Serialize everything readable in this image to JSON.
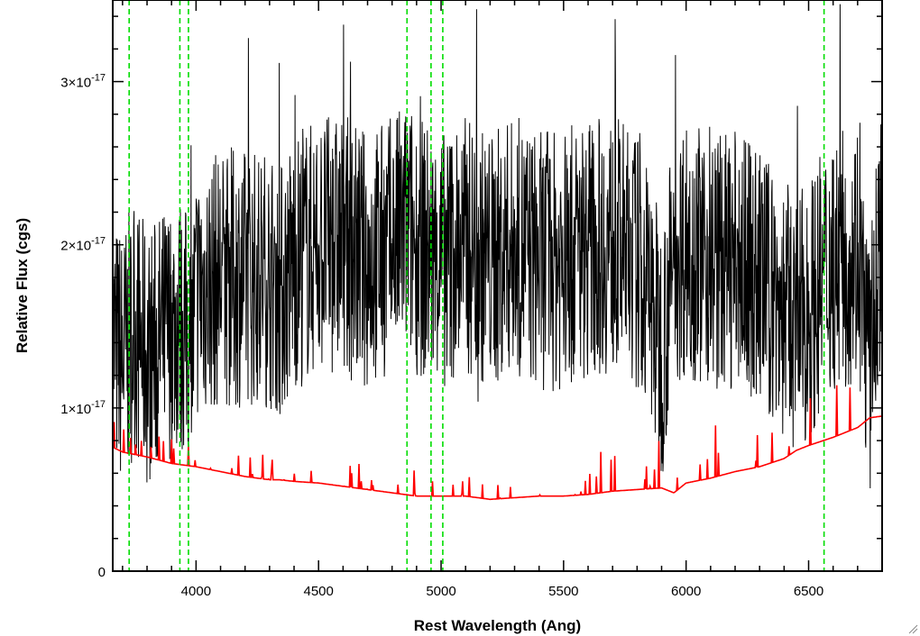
{
  "chart_data": {
    "type": "line",
    "xlabel": "Rest Wavelength (Ang)",
    "ylabel": "Relative Flux (cgs)",
    "xlim": [
      3660,
      6800
    ],
    "ylim": [
      0,
      3.5e-17
    ],
    "x_ticks": [
      {
        "value": 4000,
        "label": "4000"
      },
      {
        "value": 4500,
        "label": "4500"
      },
      {
        "value": 5000,
        "label": "5000"
      },
      {
        "value": 5500,
        "label": "5500"
      },
      {
        "value": 6000,
        "label": "6000"
      },
      {
        "value": 6500,
        "label": "6500"
      }
    ],
    "y_ticks": [
      {
        "value": 0,
        "label": "0"
      },
      {
        "value": 1e-17,
        "mantissa": "1",
        "exponent": "-17"
      },
      {
        "value": 2e-17,
        "mantissa": "2",
        "exponent": "-17"
      },
      {
        "value": 3e-17,
        "mantissa": "3",
        "exponent": "-17"
      }
    ],
    "reference_lines_x": [
      3727,
      3934,
      3969,
      4861,
      4959,
      5007,
      6563
    ],
    "series": [
      {
        "color": "#000000",
        "style": "noisy spectrum",
        "x": [
          3660,
          3700,
          3750,
          3800,
          3850,
          3900,
          3950,
          3980,
          4000,
          4100,
          4200,
          4300,
          4340,
          4400,
          4500,
          4600,
          4700,
          4800,
          4861,
          4900,
          5000,
          5100,
          5200,
          5300,
          5400,
          5500,
          5600,
          5700,
          5800,
          5850,
          5900,
          5950,
          6000,
          6100,
          6200,
          6300,
          6400,
          6450,
          6500,
          6563,
          6600,
          6650,
          6700,
          6750,
          6800
        ],
        "y": [
          1.4e-17,
          1.3e-17,
          1.5e-17,
          1.3e-17,
          1.4e-17,
          1.5e-17,
          1.5e-17,
          1.3e-17,
          1.7e-17,
          1.8e-17,
          1.8e-17,
          1.8e-17,
          1.7e-17,
          1.9e-17,
          2e-17,
          2e-17,
          1.9e-17,
          2e-17,
          2.1e-17,
          2e-17,
          1.9e-17,
          2e-17,
          1.9e-17,
          2e-17,
          1.9e-17,
          1.9e-17,
          2e-17,
          2e-17,
          1.9e-17,
          1.7e-17,
          1.35e-17,
          1.9e-17,
          2e-17,
          1.9e-17,
          1.9e-17,
          1.8e-17,
          1.6e-17,
          1.5e-17,
          1.6e-17,
          1.8e-17,
          1.9e-17,
          1.9e-17,
          2e-17,
          1.2e-17,
          2.2e-17
        ]
      },
      {
        "color": "#ff0000",
        "style": "model/error spectrum",
        "x": [
          3660,
          3700,
          3800,
          3900,
          4000,
          4100,
          4200,
          4300,
          4340,
          4400,
          4500,
          4600,
          4700,
          4800,
          4900,
          5000,
          5100,
          5200,
          5300,
          5400,
          5500,
          5600,
          5700,
          5800,
          5900,
          5950,
          6000,
          6100,
          6200,
          6300,
          6400,
          6450,
          6500,
          6600,
          6700,
          6750,
          6800
        ],
        "y": [
          7.6e-18,
          7.3e-18,
          7e-18,
          6.6e-18,
          6.4e-18,
          6.1e-18,
          5.8e-18,
          5.6e-18,
          5.6e-18,
          5.5e-18,
          5.4e-18,
          5.2e-18,
          5e-18,
          4.8e-18,
          4.6e-18,
          4.6e-18,
          4.6e-18,
          4.4e-18,
          4.5e-18,
          4.6e-18,
          4.6e-18,
          4.7e-18,
          4.9e-18,
          5e-18,
          5.1e-18,
          4.8e-18,
          5.4e-18,
          5.7e-18,
          6.1e-18,
          6.4e-18,
          6.9e-18,
          7.4e-18,
          7.7e-18,
          8.2e-18,
          8.8e-18,
          9.4e-18,
          9.5e-18
        ]
      }
    ],
    "grid": false,
    "legend": "none"
  }
}
